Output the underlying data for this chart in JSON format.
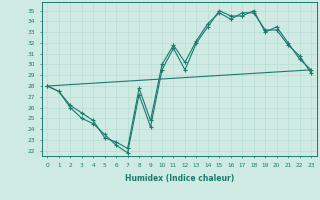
{
  "xlabel": "Humidex (Indice chaleur)",
  "xlim": [
    -0.5,
    23.5
  ],
  "ylim": [
    21.5,
    35.8
  ],
  "yticks": [
    22,
    23,
    24,
    25,
    26,
    27,
    28,
    29,
    30,
    31,
    32,
    33,
    34,
    35
  ],
  "xticks": [
    0,
    1,
    2,
    3,
    4,
    5,
    6,
    7,
    8,
    9,
    10,
    11,
    12,
    13,
    14,
    15,
    16,
    17,
    18,
    19,
    20,
    21,
    22,
    23
  ],
  "bg_color": "#ceeae2",
  "line_color": "#1a7a6e",
  "grid_color": "#b8ddd6",
  "line1_x": [
    0,
    1,
    2,
    3,
    4,
    5,
    6,
    7,
    8,
    9,
    10,
    11,
    12,
    13,
    14,
    15,
    16,
    17,
    18,
    19,
    20,
    21,
    22,
    23
  ],
  "line1_y": [
    28.0,
    27.5,
    26.0,
    25.0,
    24.5,
    23.5,
    22.5,
    21.8,
    27.2,
    24.2,
    29.5,
    31.5,
    29.5,
    32.0,
    33.5,
    35.0,
    34.5,
    34.5,
    35.0,
    33.0,
    33.5,
    32.0,
    30.5,
    29.5
  ],
  "line2_x": [
    0,
    1,
    2,
    3,
    4,
    5,
    6,
    7,
    8,
    9,
    10,
    11,
    12,
    13,
    14,
    15,
    16,
    17,
    18,
    19,
    20,
    21,
    22,
    23
  ],
  "line2_y": [
    28.0,
    27.5,
    26.2,
    25.5,
    24.8,
    23.2,
    22.8,
    22.2,
    27.8,
    24.8,
    30.0,
    31.8,
    30.2,
    32.2,
    33.8,
    34.8,
    34.2,
    34.8,
    34.8,
    33.2,
    33.2,
    31.8,
    30.8,
    29.2
  ],
  "line3_x": [
    0,
    23
  ],
  "line3_y": [
    28.0,
    29.5
  ]
}
